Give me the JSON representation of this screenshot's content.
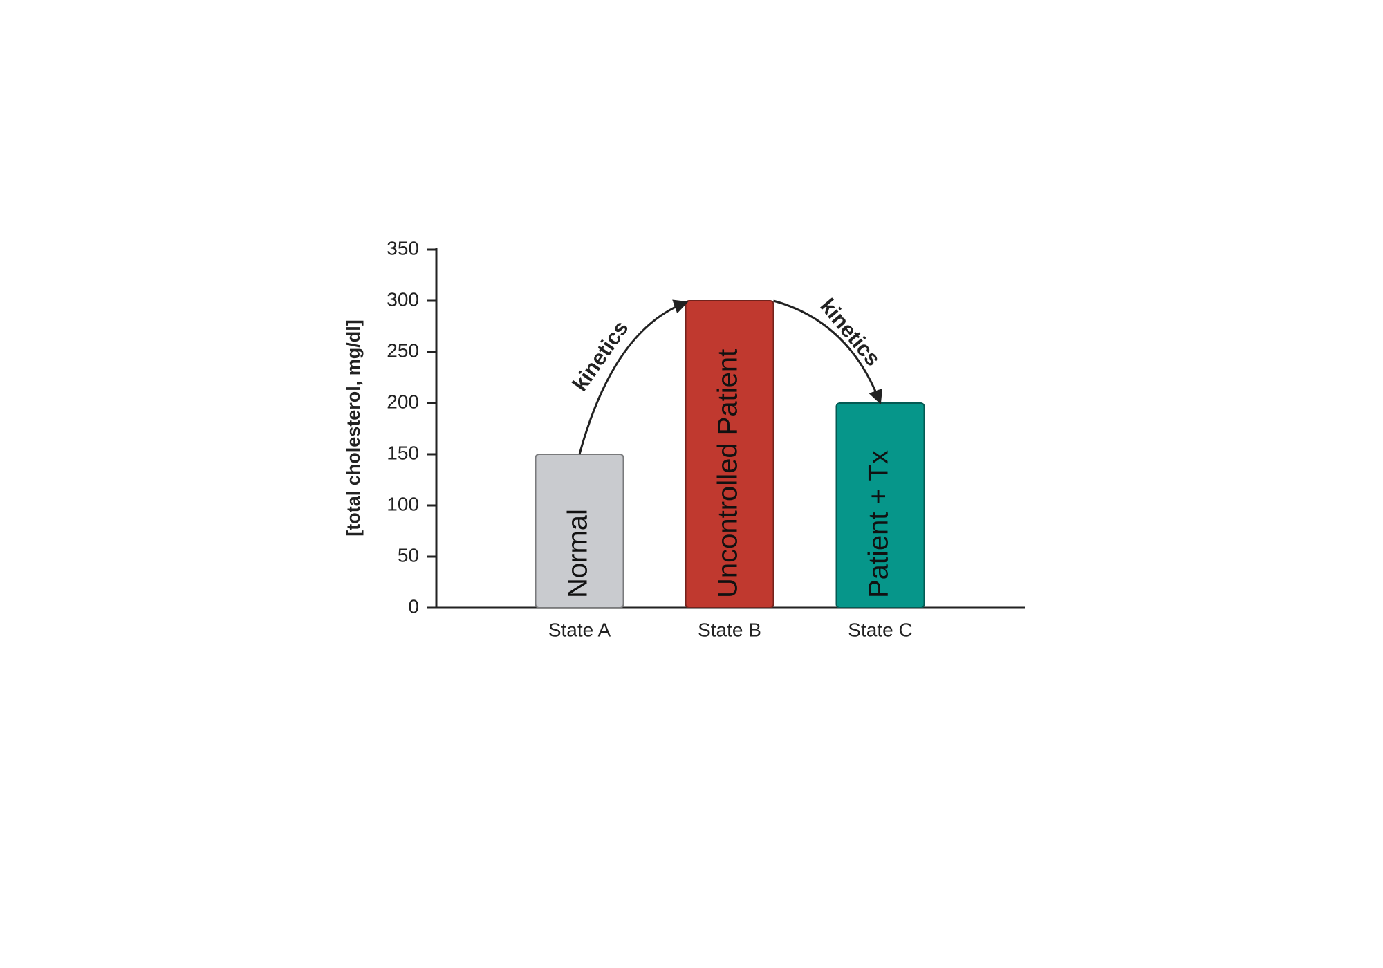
{
  "chart_data": {
    "type": "bar",
    "y_label": "[total cholesterol, mg/dl]",
    "categories": [
      "State A",
      "State B",
      "State C"
    ],
    "values": [
      150,
      300,
      200
    ],
    "bar_labels": [
      "Normal",
      "Uncontrolled Patient",
      "Patient + Tx"
    ],
    "colors": [
      "#c9cbcf",
      "#c0392f",
      "#06968a"
    ],
    "annotations": [
      "kinetics",
      "kinetics"
    ],
    "ylim": [
      0,
      350
    ],
    "yticks": [
      0,
      50,
      100,
      150,
      200,
      250,
      300,
      350
    ],
    "grid": false
  }
}
